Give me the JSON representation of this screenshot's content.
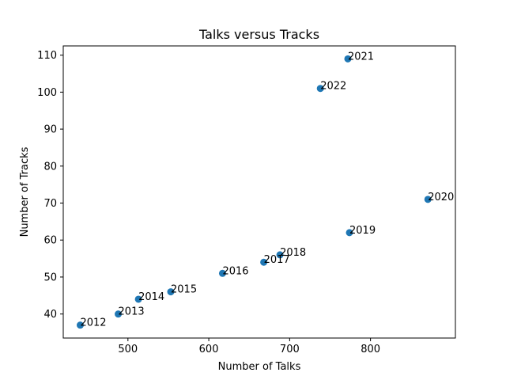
{
  "chart_data": {
    "type": "scatter",
    "title": "Talks versus Tracks",
    "xlabel": "Number of Talks",
    "ylabel": "Number of Tracks",
    "xlim": [
      420,
      905
    ],
    "ylim": [
      33.5,
      112.5
    ],
    "xticks": [
      500,
      600,
      700,
      800
    ],
    "yticks": [
      40,
      50,
      60,
      70,
      80,
      90,
      100,
      110
    ],
    "grid": false,
    "marker_color": "#1f77b4",
    "points": [
      {
        "label": "2012",
        "x": 441,
        "y": 37
      },
      {
        "label": "2013",
        "x": 488,
        "y": 40
      },
      {
        "label": "2014",
        "x": 513,
        "y": 44
      },
      {
        "label": "2015",
        "x": 553,
        "y": 46
      },
      {
        "label": "2016",
        "x": 617,
        "y": 51
      },
      {
        "label": "2017",
        "x": 668,
        "y": 54
      },
      {
        "label": "2018",
        "x": 688,
        "y": 56
      },
      {
        "label": "2019",
        "x": 774,
        "y": 62
      },
      {
        "label": "2020",
        "x": 871,
        "y": 71
      },
      {
        "label": "2021",
        "x": 772,
        "y": 109
      },
      {
        "label": "2022",
        "x": 738,
        "y": 101
      }
    ]
  }
}
